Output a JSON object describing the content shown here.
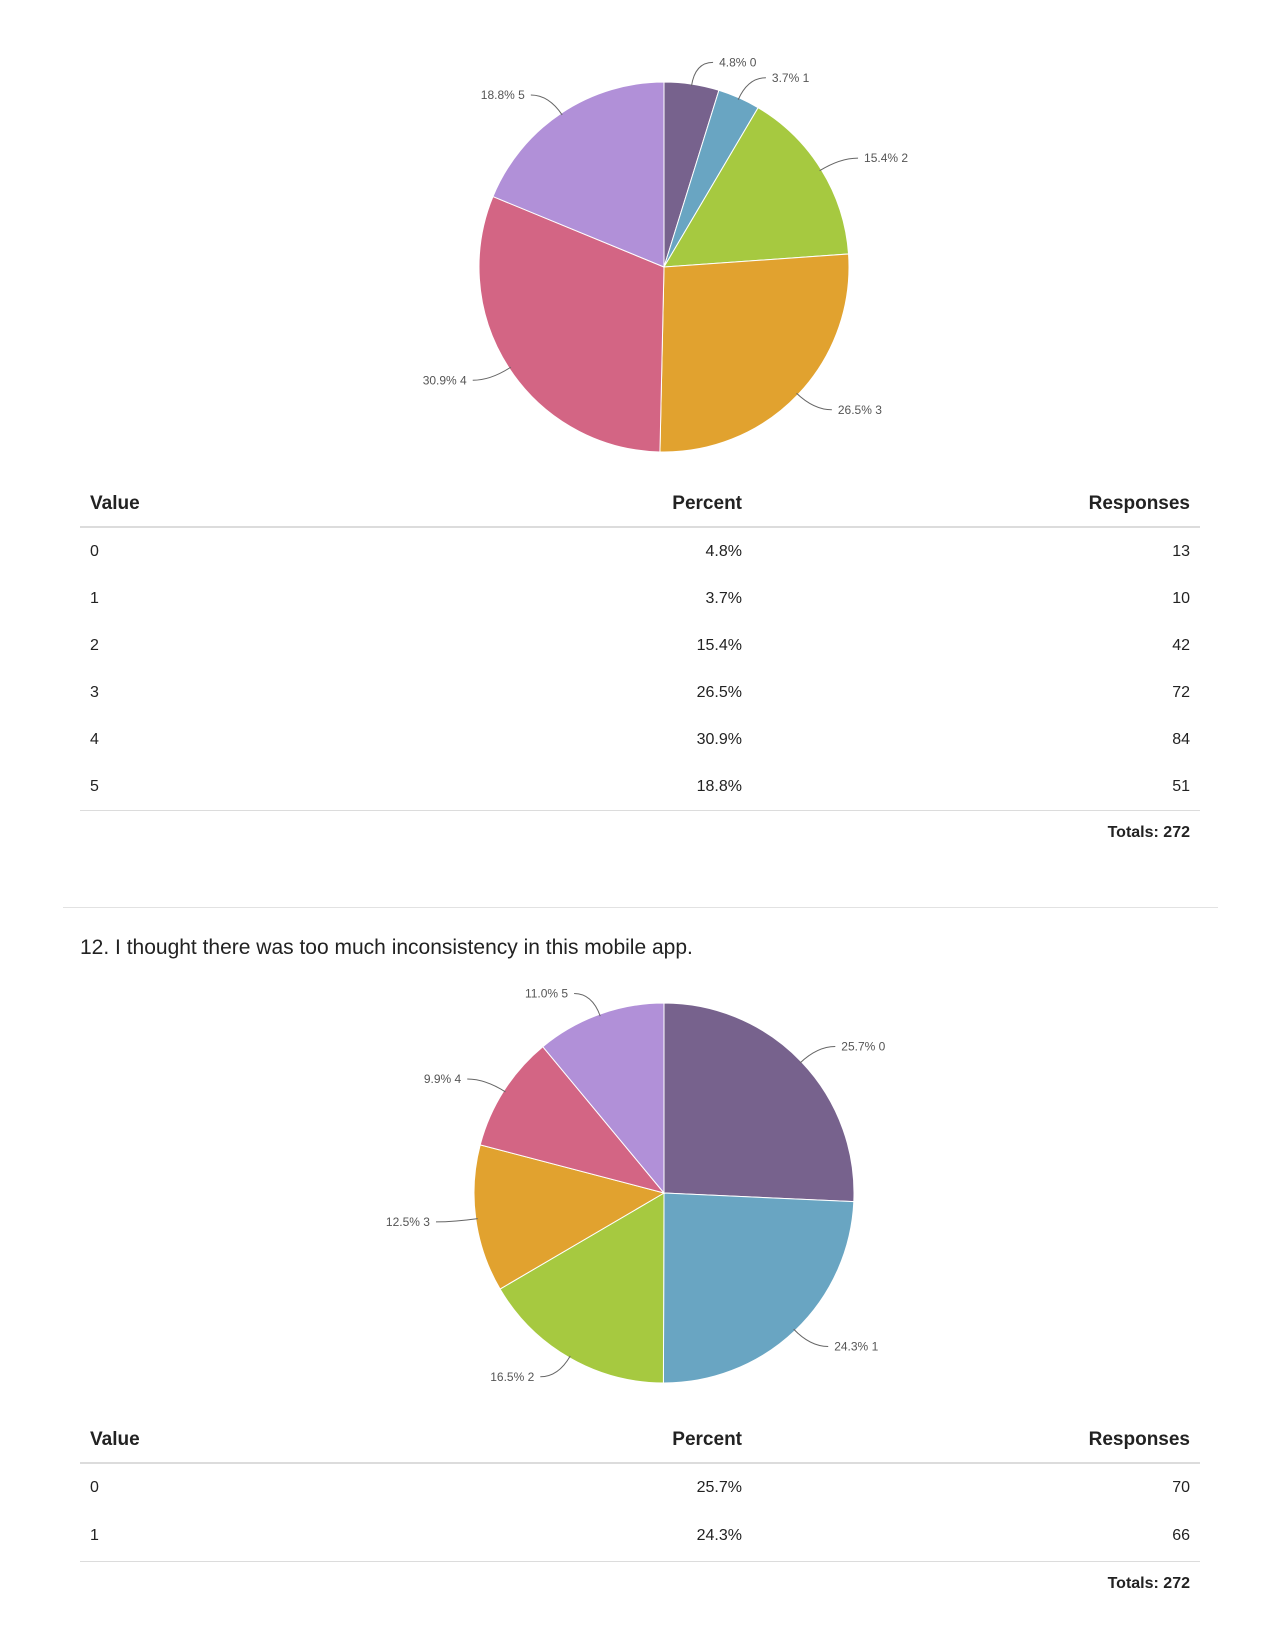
{
  "chart_data": [
    {
      "type": "pie",
      "values": [
        4.8,
        3.7,
        15.4,
        26.5,
        30.9,
        18.8
      ],
      "categories": [
        "0",
        "1",
        "2",
        "3",
        "4",
        "5"
      ],
      "labels": [
        "4.8% 0",
        "3.7% 1",
        "15.4% 2",
        "26.5% 3",
        "30.9% 4",
        "18.8% 5"
      ],
      "colors": [
        "#77628d",
        "#69a5c2",
        "#a6c940",
        "#e1a22f",
        "#d36584",
        "#b190d8"
      ]
    },
    {
      "type": "pie",
      "values": [
        25.7,
        24.3,
        16.5,
        12.5,
        9.9,
        11.0
      ],
      "categories": [
        "0",
        "1",
        "2",
        "3",
        "4",
        "5"
      ],
      "labels": [
        "25.7% 0",
        "24.3% 1",
        "16.5% 2",
        "12.5% 3",
        "9.9% 4",
        "11.0% 5"
      ],
      "colors": [
        "#77628d",
        "#69a5c2",
        "#a6c940",
        "#e1a22f",
        "#d36584",
        "#b190d8"
      ]
    }
  ],
  "table1": {
    "headers": {
      "value": "Value",
      "percent": "Percent",
      "responses": "Responses"
    },
    "rows": [
      {
        "value": "0",
        "percent": "4.8%",
        "responses": "13"
      },
      {
        "value": "1",
        "percent": "3.7%",
        "responses": "10"
      },
      {
        "value": "2",
        "percent": "15.4%",
        "responses": "42"
      },
      {
        "value": "3",
        "percent": "26.5%",
        "responses": "72"
      },
      {
        "value": "4",
        "percent": "30.9%",
        "responses": "84"
      },
      {
        "value": "5",
        "percent": "18.8%",
        "responses": "51"
      }
    ],
    "totals": "Totals: 272"
  },
  "question2": {
    "title": "12. I thought there was too much inconsistency in this mobile app."
  },
  "table2": {
    "headers": {
      "value": "Value",
      "percent": "Percent",
      "responses": "Responses"
    },
    "rows": [
      {
        "value": "0",
        "percent": "25.7%",
        "responses": "70"
      },
      {
        "value": "1",
        "percent": "24.3%",
        "responses": "66"
      }
    ],
    "totals": "Totals: 272"
  }
}
